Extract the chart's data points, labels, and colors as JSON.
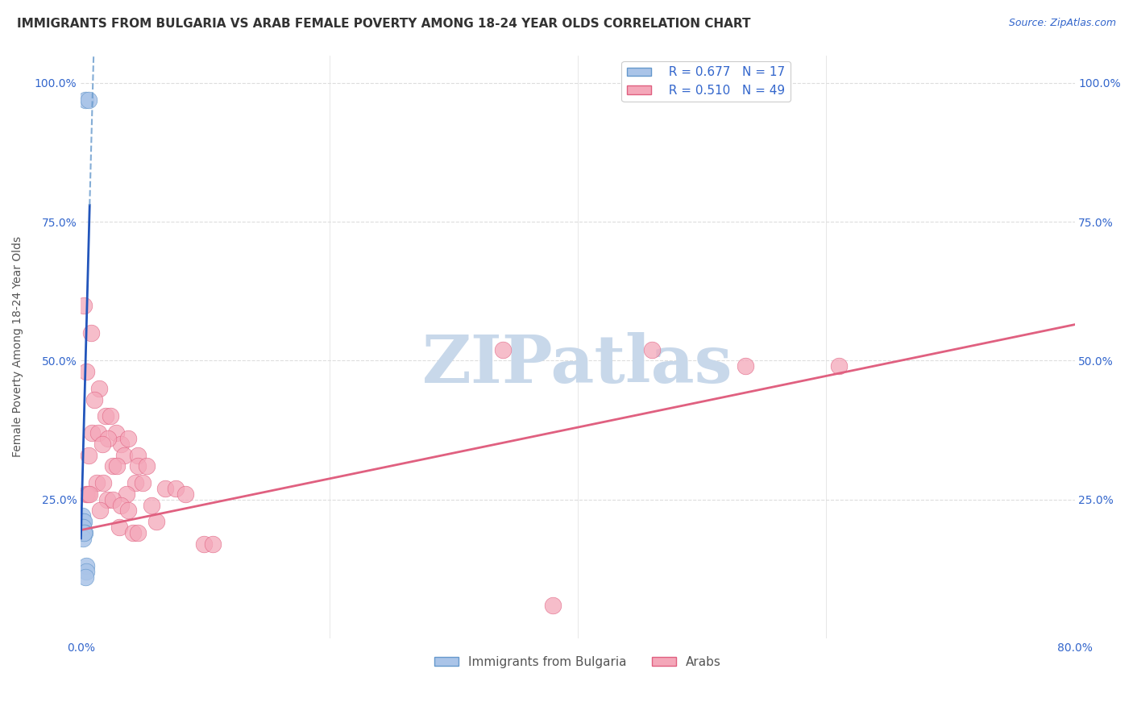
{
  "title": "IMMIGRANTS FROM BULGARIA VS ARAB FEMALE POVERTY AMONG 18-24 YEAR OLDS CORRELATION CHART",
  "source": "Source: ZipAtlas.com",
  "ylabel": "Female Poverty Among 18-24 Year Olds",
  "xlim": [
    0.0,
    0.8
  ],
  "ylim": [
    0.0,
    1.05
  ],
  "bg_color": "#ffffff",
  "grid_color": "#dddddd",
  "bulgaria_color": "#aac4e8",
  "bulgaria_edge_color": "#6699cc",
  "bulgaria_R": 0.677,
  "bulgaria_N": 17,
  "bulgaria_line_color": "#2255bb",
  "bulgaria_dash_color": "#6699cc",
  "arab_color": "#f4a7b9",
  "arab_edge_color": "#e06080",
  "arab_R": 0.51,
  "arab_N": 49,
  "arab_line_color": "#e06080",
  "arab_line_x0": 0.0,
  "arab_line_y0": 0.195,
  "arab_line_x1": 0.8,
  "arab_line_y1": 0.565,
  "bulgaria_slope": 85.0,
  "bulgaria_intercept": 0.18,
  "bulgaria_points": [
    [
      0.0035,
      0.97
    ],
    [
      0.006,
      0.97
    ],
    [
      0.0008,
      0.21
    ],
    [
      0.0005,
      0.2
    ],
    [
      0.0006,
      0.19
    ],
    [
      0.001,
      0.22
    ],
    [
      0.0015,
      0.21
    ],
    [
      0.0018,
      0.2
    ],
    [
      0.0022,
      0.21
    ],
    [
      0.0012,
      0.2
    ],
    [
      0.002,
      0.2
    ],
    [
      0.003,
      0.19
    ],
    [
      0.0016,
      0.18
    ],
    [
      0.0025,
      0.19
    ],
    [
      0.004,
      0.13
    ],
    [
      0.0045,
      0.12
    ],
    [
      0.0035,
      0.11
    ]
  ],
  "arab_points": [
    [
      0.0025,
      0.6
    ],
    [
      0.008,
      0.55
    ],
    [
      0.004,
      0.48
    ],
    [
      0.015,
      0.45
    ],
    [
      0.011,
      0.43
    ],
    [
      0.02,
      0.4
    ],
    [
      0.024,
      0.4
    ],
    [
      0.009,
      0.37
    ],
    [
      0.014,
      0.37
    ],
    [
      0.028,
      0.37
    ],
    [
      0.032,
      0.35
    ],
    [
      0.022,
      0.36
    ],
    [
      0.017,
      0.35
    ],
    [
      0.038,
      0.36
    ],
    [
      0.035,
      0.33
    ],
    [
      0.046,
      0.33
    ],
    [
      0.006,
      0.33
    ],
    [
      0.026,
      0.31
    ],
    [
      0.029,
      0.31
    ],
    [
      0.046,
      0.31
    ],
    [
      0.053,
      0.31
    ],
    [
      0.0125,
      0.28
    ],
    [
      0.018,
      0.28
    ],
    [
      0.044,
      0.28
    ],
    [
      0.05,
      0.28
    ],
    [
      0.068,
      0.27
    ],
    [
      0.076,
      0.27
    ],
    [
      0.004,
      0.26
    ],
    [
      0.0055,
      0.26
    ],
    [
      0.007,
      0.26
    ],
    [
      0.037,
      0.26
    ],
    [
      0.084,
      0.26
    ],
    [
      0.021,
      0.25
    ],
    [
      0.0255,
      0.25
    ],
    [
      0.032,
      0.24
    ],
    [
      0.057,
      0.24
    ],
    [
      0.0155,
      0.23
    ],
    [
      0.038,
      0.23
    ],
    [
      0.061,
      0.21
    ],
    [
      0.031,
      0.2
    ],
    [
      0.042,
      0.19
    ],
    [
      0.046,
      0.19
    ],
    [
      0.099,
      0.17
    ],
    [
      0.106,
      0.17
    ],
    [
      0.38,
      0.06
    ],
    [
      0.34,
      0.52
    ],
    [
      0.46,
      0.52
    ],
    [
      0.535,
      0.49
    ],
    [
      0.61,
      0.49
    ]
  ],
  "watermark_text": "ZIPatlas",
  "watermark_color": "#c8d8ea",
  "title_fontsize": 11,
  "axis_label_fontsize": 10,
  "tick_fontsize": 10,
  "legend_fontsize": 11,
  "source_fontsize": 9
}
